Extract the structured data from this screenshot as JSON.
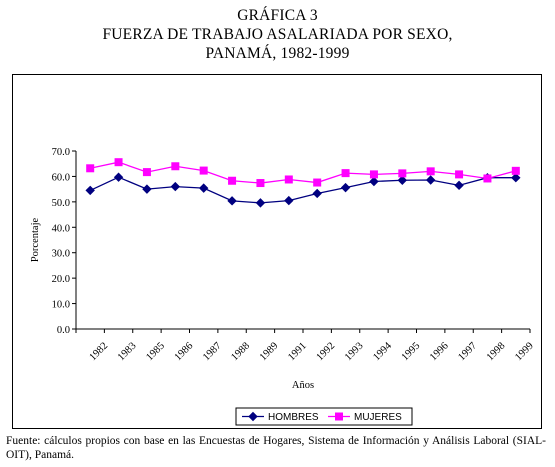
{
  "title": {
    "line1": "GRÁFICA 3",
    "line2": "FUERZA DE TRABAJO ASALARIADA POR SEXO,",
    "line3": "PANAMÁ, 1982-1999"
  },
  "source_note": "Fuente: cálculos propios con base en las Encuestas de Hogares, Sistema de Información y Análisis Laboral (SIAL-OIT), Panamá.",
  "chart_data": {
    "type": "line",
    "xlabel": "Años",
    "ylabel": "Porcentaje",
    "categories": [
      "1982",
      "1983",
      "1985",
      "1986",
      "1987",
      "1988",
      "1989",
      "1991",
      "1992",
      "1993",
      "1994",
      "1995",
      "1996",
      "1997",
      "1998",
      "1999"
    ],
    "ylim": [
      0,
      70
    ],
    "yticks": [
      "0.0",
      "10.0",
      "20.0",
      "30.0",
      "40.0",
      "50.0",
      "60.0",
      "70.0"
    ],
    "grid": false,
    "legend_position": "bottom",
    "series": [
      {
        "name": "HOMBRES",
        "color": "#000080",
        "marker": "diamond",
        "values": [
          54.5,
          59.7,
          55.0,
          56.0,
          55.4,
          50.4,
          49.6,
          50.5,
          53.3,
          55.6,
          58.0,
          58.5,
          58.6,
          56.5,
          59.5,
          59.5
        ]
      },
      {
        "name": "MUJERES",
        "color": "#FF00FF",
        "marker": "square",
        "values": [
          63.2,
          65.6,
          61.7,
          64.0,
          62.3,
          58.3,
          57.4,
          58.8,
          57.6,
          61.3,
          60.8,
          61.2,
          62.0,
          60.8,
          59.2,
          62.2
        ]
      }
    ]
  }
}
